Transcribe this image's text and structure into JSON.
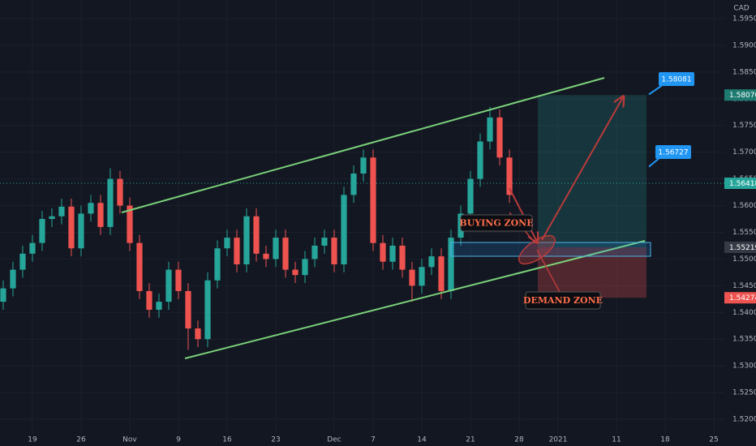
{
  "chart_data": {
    "type": "candlestick",
    "currency": "CAD",
    "x": [
      -3,
      -2,
      -1,
      0,
      1,
      2,
      3,
      4,
      5,
      6,
      7,
      8,
      9,
      10,
      11,
      12,
      13,
      14,
      15,
      16,
      17,
      18,
      19,
      20,
      21,
      22,
      23,
      24,
      25,
      26,
      27,
      28,
      29,
      30,
      31,
      32,
      33,
      34,
      35,
      36,
      37,
      38,
      39,
      40,
      41,
      42,
      43,
      44,
      45,
      46,
      47,
      48,
      49
    ],
    "open": [
      1.542,
      1.5445,
      1.548,
      1.551,
      1.553,
      1.5575,
      1.558,
      1.5598,
      1.552,
      1.5585,
      1.5605,
      1.556,
      1.565,
      1.56,
      1.553,
      1.544,
      1.5405,
      1.542,
      1.548,
      1.544,
      1.537,
      1.535,
      1.546,
      1.552,
      1.554,
      1.549,
      1.558,
      1.551,
      1.55,
      1.554,
      1.548,
      1.547,
      1.55,
      1.5525,
      1.554,
      1.549,
      1.562,
      1.566,
      1.569,
      1.553,
      1.5495,
      1.5525,
      1.548,
      1.545,
      1.5485,
      1.5505,
      1.544,
      1.554,
      1.5585,
      1.565,
      1.572,
      1.5765,
      1.569
    ],
    "high": [
      1.546,
      1.5495,
      1.5525,
      1.5545,
      1.559,
      1.5595,
      1.5613,
      1.5613,
      1.56,
      1.562,
      1.562,
      1.567,
      1.5665,
      1.5615,
      1.5545,
      1.5455,
      1.5435,
      1.5495,
      1.5495,
      1.5455,
      1.5385,
      1.5475,
      1.5535,
      1.5555,
      1.5555,
      1.5595,
      1.5595,
      1.5525,
      1.5555,
      1.5555,
      1.5495,
      1.5515,
      1.554,
      1.5555,
      1.5555,
      1.5635,
      1.5675,
      1.5705,
      1.5705,
      1.5545,
      1.554,
      1.554,
      1.5495,
      1.55,
      1.552,
      1.552,
      1.5555,
      1.56,
      1.5665,
      1.5735,
      1.5785,
      1.578,
      1.5705
    ],
    "low": [
      1.5405,
      1.543,
      1.5465,
      1.5495,
      1.5515,
      1.556,
      1.5565,
      1.5505,
      1.5505,
      1.557,
      1.5545,
      1.5545,
      1.5585,
      1.5515,
      1.5425,
      1.539,
      1.539,
      1.5405,
      1.5425,
      1.533,
      1.5335,
      1.5335,
      1.5445,
      1.5505,
      1.5475,
      1.5475,
      1.5495,
      1.5485,
      1.5485,
      1.5465,
      1.5455,
      1.5455,
      1.5485,
      1.551,
      1.5475,
      1.5475,
      1.5605,
      1.5645,
      1.5515,
      1.548,
      1.548,
      1.5465,
      1.542,
      1.5435,
      1.547,
      1.5425,
      1.5425,
      1.5525,
      1.557,
      1.5635,
      1.5705,
      1.5675,
      1.5605
    ],
    "close": [
      1.5445,
      1.548,
      1.551,
      1.553,
      1.5575,
      1.558,
      1.5598,
      1.552,
      1.5585,
      1.5605,
      1.556,
      1.565,
      1.56,
      1.553,
      1.544,
      1.5405,
      1.542,
      1.548,
      1.544,
      1.537,
      1.535,
      1.546,
      1.552,
      1.554,
      1.549,
      1.558,
      1.551,
      1.55,
      1.554,
      1.548,
      1.547,
      1.55,
      1.5525,
      1.554,
      1.549,
      1.562,
      1.566,
      1.569,
      1.553,
      1.5495,
      1.5525,
      1.548,
      1.545,
      1.5485,
      1.5505,
      1.544,
      1.554,
      1.5585,
      1.565,
      1.572,
      1.5765,
      1.569,
      1.562
    ],
    "up_color": "#26a69a",
    "down_color": "#ef5350",
    "xlim": [
      -3.33,
      71.08
    ],
    "ylim": [
      1.51727,
      1.59849
    ],
    "xticks": [
      {
        "value": 0,
        "label": "19"
      },
      {
        "value": 5,
        "label": "26"
      },
      {
        "value": 10,
        "label": "Nov"
      },
      {
        "value": 15,
        "label": "9"
      },
      {
        "value": 20,
        "label": "16"
      },
      {
        "value": 25,
        "label": "23"
      },
      {
        "value": 31,
        "label": "Dec"
      },
      {
        "value": 35,
        "label": "7"
      },
      {
        "value": 40,
        "label": "14"
      },
      {
        "value": 45,
        "label": "21"
      },
      {
        "value": 50,
        "label": "28"
      },
      {
        "value": 54,
        "label": "2021"
      },
      {
        "value": 60,
        "label": "11"
      },
      {
        "value": 65,
        "label": "18"
      },
      {
        "value": 70,
        "label": "25"
      }
    ],
    "yticks": [
      {
        "value": 1.52,
        "label": "1.52000"
      },
      {
        "value": 1.525,
        "label": "1.52500"
      },
      {
        "value": 1.53,
        "label": "1.53000"
      },
      {
        "value": 1.535,
        "label": "1.53500"
      },
      {
        "value": 1.54,
        "label": "1.54000"
      },
      {
        "value": 1.545,
        "label": "1.54500"
      },
      {
        "value": 1.55,
        "label": "1.55000"
      },
      {
        "value": 1.555,
        "label": "1.55500"
      },
      {
        "value": 1.56,
        "label": "1.56000"
      },
      {
        "value": 1.565,
        "label": "1.56500"
      },
      {
        "value": 1.57,
        "label": "1.57000"
      },
      {
        "value": 1.575,
        "label": "1.57500"
      },
      {
        "value": 1.58,
        "label": "1.58000"
      },
      {
        "value": 1.585,
        "label": "1.58500"
      },
      {
        "value": 1.59,
        "label": "1.59000"
      },
      {
        "value": 1.595,
        "label": "1.59500"
      }
    ],
    "grid": true,
    "price_tags": [
      {
        "value": 1.5807,
        "label": "1.58070",
        "color": "#1e7b72"
      },
      {
        "value": 1.56418,
        "label": "1.56418",
        "color": "#26a69a"
      },
      {
        "value": 1.55219,
        "label": "1.55219",
        "color": "#363a45"
      },
      {
        "value": 1.54274,
        "label": "1.54274",
        "color": "#ef5350"
      }
    ],
    "callouts": [
      {
        "value": 1.58081,
        "label": "1.58081"
      },
      {
        "value": 1.56727,
        "label": "1.56727"
      }
    ],
    "callout_color": "#2196f3",
    "annotations": [
      "BUYING ZONE",
      "DEMAND ZONE"
    ]
  }
}
